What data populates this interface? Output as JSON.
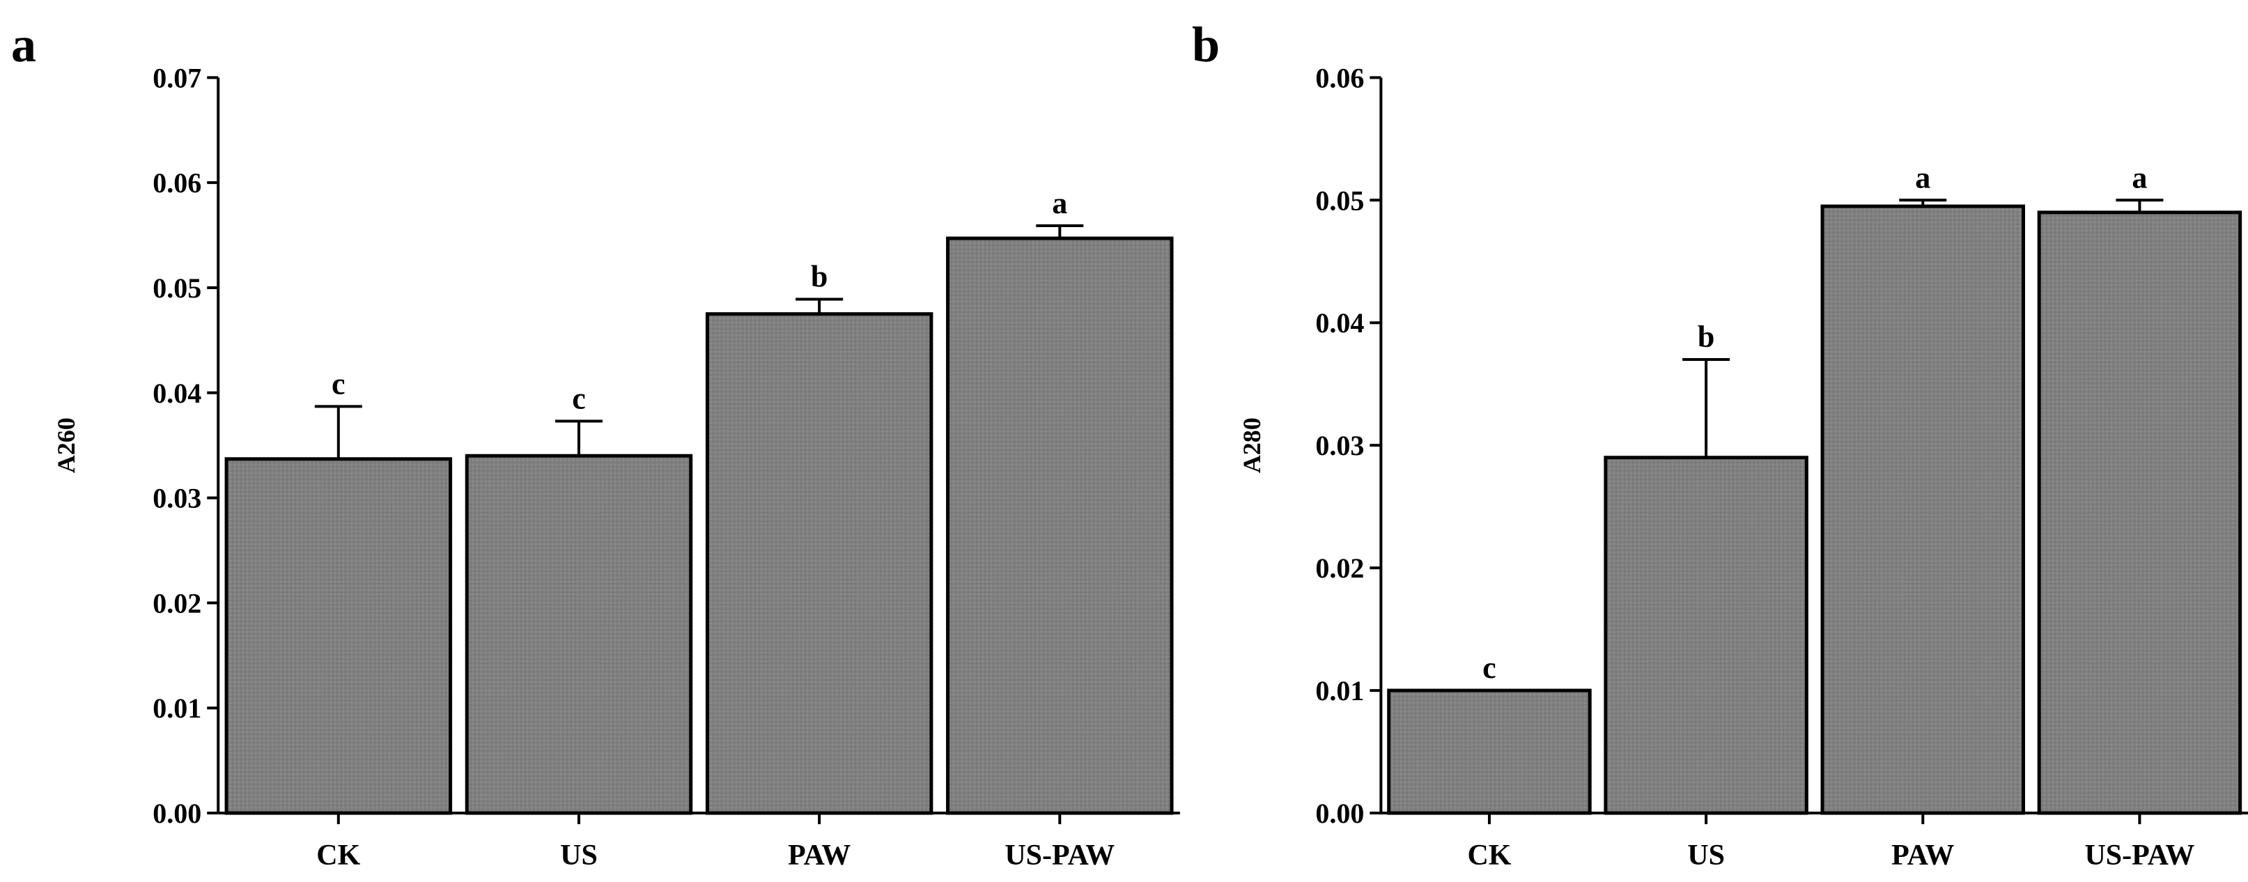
{
  "chart_data": [
    {
      "panel_label": "a",
      "type": "bar",
      "title": "",
      "xlabel": "",
      "ylabel": "A260",
      "ylim": [
        0,
        0.07
      ],
      "yticks": [
        "0.00",
        "0.01",
        "0.02",
        "0.03",
        "0.04",
        "0.05",
        "0.06",
        "0.07"
      ],
      "categories": [
        "CK",
        "US",
        "PAW",
        "US-PAW"
      ],
      "values": [
        0.0337,
        0.034,
        0.0475,
        0.0547
      ],
      "errors": [
        0.005,
        0.0033,
        0.0014,
        0.0012
      ],
      "significance": [
        "c",
        "c",
        "b",
        "a"
      ],
      "bar_color": "#808080",
      "grid": false,
      "legend": false
    },
    {
      "panel_label": "b",
      "type": "bar",
      "title": "",
      "xlabel": "",
      "ylabel": "A280",
      "ylim": [
        0,
        0.06
      ],
      "yticks": [
        "0.00",
        "0.01",
        "0.02",
        "0.03",
        "0.04",
        "0.05",
        "0.06"
      ],
      "categories": [
        "CK",
        "US",
        "PAW",
        "US-PAW"
      ],
      "values": [
        0.01,
        0.029,
        0.0495,
        0.049
      ],
      "errors": [
        0.0,
        0.008,
        0.0005,
        0.001
      ],
      "significance": [
        "c",
        "b",
        "a",
        "a"
      ],
      "bar_color": "#808080",
      "grid": false,
      "legend": false
    }
  ]
}
